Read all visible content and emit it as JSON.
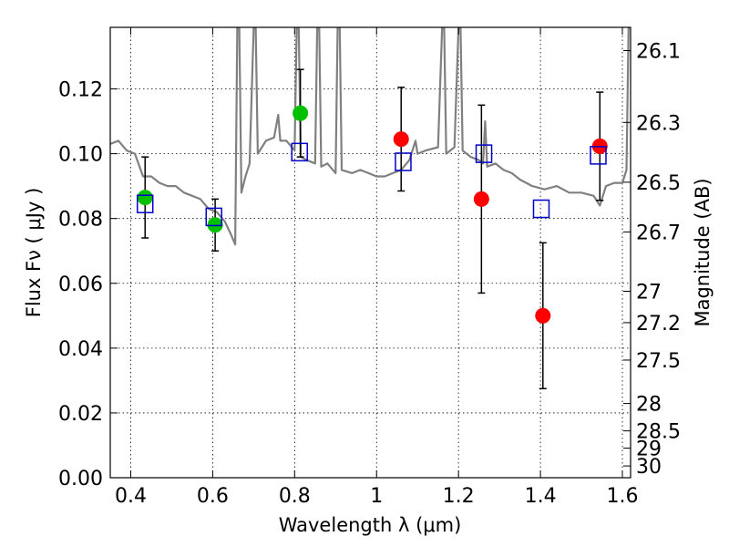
{
  "chart_data": {
    "type": "scatter",
    "xlabel": "Wavelength  λ (μm)",
    "ylabel": "Flux  Fν  ( μJy )",
    "y2label": "Magnitude (AB)",
    "xlim": [
      0.35,
      1.62
    ],
    "ylim": [
      0.0,
      0.139
    ],
    "grid": true,
    "x_ticks": [
      {
        "value": 0.4,
        "label": "0.4"
      },
      {
        "value": 0.6,
        "label": "0.6"
      },
      {
        "value": 0.8,
        "label": "0.8"
      },
      {
        "value": 1.0,
        "label": "1"
      },
      {
        "value": 1.2,
        "label": "1.2"
      },
      {
        "value": 1.4,
        "label": "1.4"
      },
      {
        "value": 1.6,
        "label": "1.6"
      }
    ],
    "y_ticks": [
      {
        "value": 0.0,
        "label": "0.00"
      },
      {
        "value": 0.02,
        "label": "0.02"
      },
      {
        "value": 0.04,
        "label": "0.04"
      },
      {
        "value": 0.06,
        "label": "0.06"
      },
      {
        "value": 0.08,
        "label": "0.08"
      },
      {
        "value": 0.1,
        "label": "0.10"
      },
      {
        "value": 0.12,
        "label": "0.12"
      }
    ],
    "mag_ticks": [
      {
        "mag": 26.1,
        "label": "26.1"
      },
      {
        "mag": 26.3,
        "label": "26.3"
      },
      {
        "mag": 26.5,
        "label": "26.5"
      },
      {
        "mag": 26.7,
        "label": "26.7"
      },
      {
        "mag": 27.0,
        "label": "27"
      },
      {
        "mag": 27.2,
        "label": "27.2"
      },
      {
        "mag": 27.5,
        "label": "27.5"
      },
      {
        "mag": 28.0,
        "label": "28"
      },
      {
        "mag": 28.5,
        "label": "28.5"
      },
      {
        "mag": 29.0,
        "label": "29"
      },
      {
        "mag": 30.0,
        "label": "30"
      }
    ],
    "series": [
      {
        "kind": "line",
        "color": "#808080",
        "points": [
          [
            0.35,
            0.103
          ],
          [
            0.37,
            0.104
          ],
          [
            0.39,
            0.101
          ],
          [
            0.41,
            0.1
          ],
          [
            0.43,
            0.093
          ],
          [
            0.45,
            0.093
          ],
          [
            0.47,
            0.091
          ],
          [
            0.49,
            0.09
          ],
          [
            0.51,
            0.09
          ],
          [
            0.53,
            0.088
          ],
          [
            0.55,
            0.087
          ],
          [
            0.57,
            0.086
          ],
          [
            0.59,
            0.083
          ],
          [
            0.61,
            0.082
          ],
          [
            0.63,
            0.079
          ],
          [
            0.645,
            0.075
          ],
          [
            0.655,
            0.072
          ],
          [
            0.66,
            0.139
          ],
          [
            0.665,
            0.139
          ],
          [
            0.67,
            0.088
          ],
          [
            0.68,
            0.093
          ],
          [
            0.69,
            0.097
          ],
          [
            0.7,
            0.139
          ],
          [
            0.705,
            0.139
          ],
          [
            0.71,
            0.1
          ],
          [
            0.73,
            0.104
          ],
          [
            0.75,
            0.105
          ],
          [
            0.76,
            0.112
          ],
          [
            0.765,
            0.104
          ],
          [
            0.78,
            0.104
          ],
          [
            0.8,
            0.101
          ],
          [
            0.805,
            0.139
          ],
          [
            0.81,
            0.139
          ],
          [
            0.815,
            0.099
          ],
          [
            0.83,
            0.098
          ],
          [
            0.85,
            0.097
          ],
          [
            0.855,
            0.139
          ],
          [
            0.86,
            0.139
          ],
          [
            0.865,
            0.096
          ],
          [
            0.88,
            0.097
          ],
          [
            0.9,
            0.094
          ],
          [
            0.905,
            0.139
          ],
          [
            0.91,
            0.139
          ],
          [
            0.915,
            0.095
          ],
          [
            0.94,
            0.094
          ],
          [
            0.96,
            0.095
          ],
          [
            0.98,
            0.094
          ],
          [
            1.0,
            0.093
          ],
          [
            1.02,
            0.093
          ],
          [
            1.04,
            0.094
          ],
          [
            1.06,
            0.095
          ],
          [
            1.08,
            0.098
          ],
          [
            1.095,
            0.104
          ],
          [
            1.1,
            0.1
          ],
          [
            1.12,
            0.101
          ],
          [
            1.15,
            0.102
          ],
          [
            1.16,
            0.139
          ],
          [
            1.165,
            0.139
          ],
          [
            1.17,
            0.1
          ],
          [
            1.19,
            0.102
          ],
          [
            1.2,
            0.139
          ],
          [
            1.205,
            0.139
          ],
          [
            1.21,
            0.101
          ],
          [
            1.23,
            0.099
          ],
          [
            1.25,
            0.098
          ],
          [
            1.26,
            0.097
          ],
          [
            1.265,
            0.11
          ],
          [
            1.27,
            0.096
          ],
          [
            1.29,
            0.097
          ],
          [
            1.31,
            0.095
          ],
          [
            1.33,
            0.094
          ],
          [
            1.35,
            0.092
          ],
          [
            1.38,
            0.09
          ],
          [
            1.41,
            0.089
          ],
          [
            1.44,
            0.09
          ],
          [
            1.47,
            0.088
          ],
          [
            1.5,
            0.088
          ],
          [
            1.53,
            0.087
          ],
          [
            1.545,
            0.084
          ],
          [
            1.55,
            0.086
          ],
          [
            1.56,
            0.09
          ],
          [
            1.58,
            0.091
          ],
          [
            1.6,
            0.091
          ],
          [
            1.61,
            0.095
          ],
          [
            1.615,
            0.139
          ],
          [
            1.62,
            0.139
          ]
        ]
      },
      {
        "kind": "scatter",
        "marker": "circle",
        "color": "#00c000",
        "points": [
          {
            "x": 0.435,
            "y": 0.0865,
            "err": 0.0125
          },
          {
            "x": 0.606,
            "y": 0.078,
            "err": 0.008
          },
          {
            "x": 0.814,
            "y": 0.1125,
            "err": 0.0135
          }
        ]
      },
      {
        "kind": "scatter",
        "marker": "circle",
        "color": "#ff0000",
        "points": [
          {
            "x": 1.06,
            "y": 0.1045,
            "err": 0.016
          },
          {
            "x": 1.256,
            "y": 0.086,
            "err": 0.029
          },
          {
            "x": 1.406,
            "y": 0.05,
            "err": 0.0225
          },
          {
            "x": 1.545,
            "y": 0.1023,
            "err": 0.0167
          }
        ]
      },
      {
        "kind": "scatter",
        "marker": "square-open",
        "color": "#0000cc",
        "points": [
          {
            "x": 0.435,
            "y": 0.0845
          },
          {
            "x": 0.603,
            "y": 0.0805
          },
          {
            "x": 0.812,
            "y": 0.1005
          },
          {
            "x": 1.065,
            "y": 0.0975
          },
          {
            "x": 1.262,
            "y": 0.1
          },
          {
            "x": 1.402,
            "y": 0.083
          },
          {
            "x": 1.541,
            "y": 0.0995
          }
        ]
      }
    ]
  }
}
